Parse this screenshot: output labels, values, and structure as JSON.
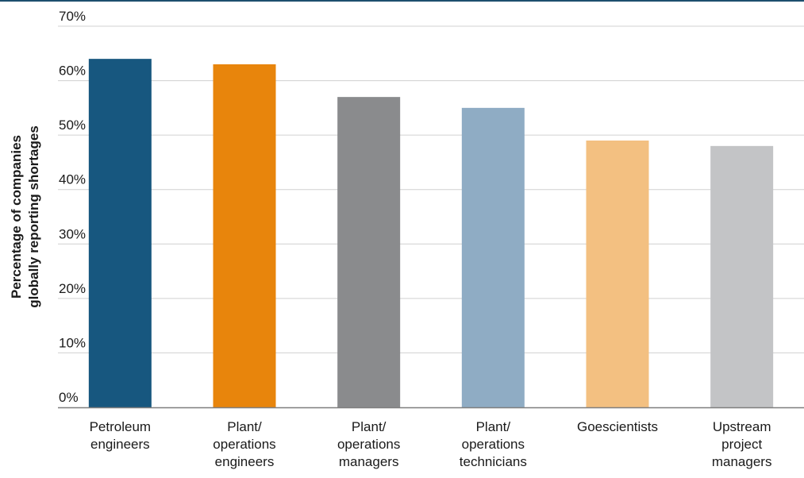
{
  "chart_data": {
    "type": "bar",
    "title": "",
    "xlabel": "",
    "ylabel_lines": [
      "Percentage of companies",
      "globally reporting shortages"
    ],
    "ylim": [
      0,
      70
    ],
    "yticks": [
      0,
      10,
      20,
      30,
      40,
      50,
      60,
      70
    ],
    "ytick_labels": [
      "0%",
      "10%",
      "20%",
      "30%",
      "40%",
      "50%",
      "60%",
      "70%"
    ],
    "grid": true,
    "legend": "none",
    "categories": [
      [
        "Petroleum",
        "engineers"
      ],
      [
        "Plant/",
        "operations",
        "engineers"
      ],
      [
        "Plant/",
        "operations",
        "managers"
      ],
      [
        "Plant/",
        "operations",
        "technicians"
      ],
      [
        "Goescientists"
      ],
      [
        "Upstream",
        "project",
        "managers"
      ]
    ],
    "values": [
      64,
      63,
      57,
      55,
      49,
      48
    ],
    "colors": [
      "#17577f",
      "#e8850c",
      "#8a8b8d",
      "#8facc4",
      "#f3c081",
      "#c3c4c6"
    ],
    "top_rule_color": "#1d4e6e",
    "grid_color": "#d0d0d0",
    "axis_color": "#7f7f7f"
  }
}
